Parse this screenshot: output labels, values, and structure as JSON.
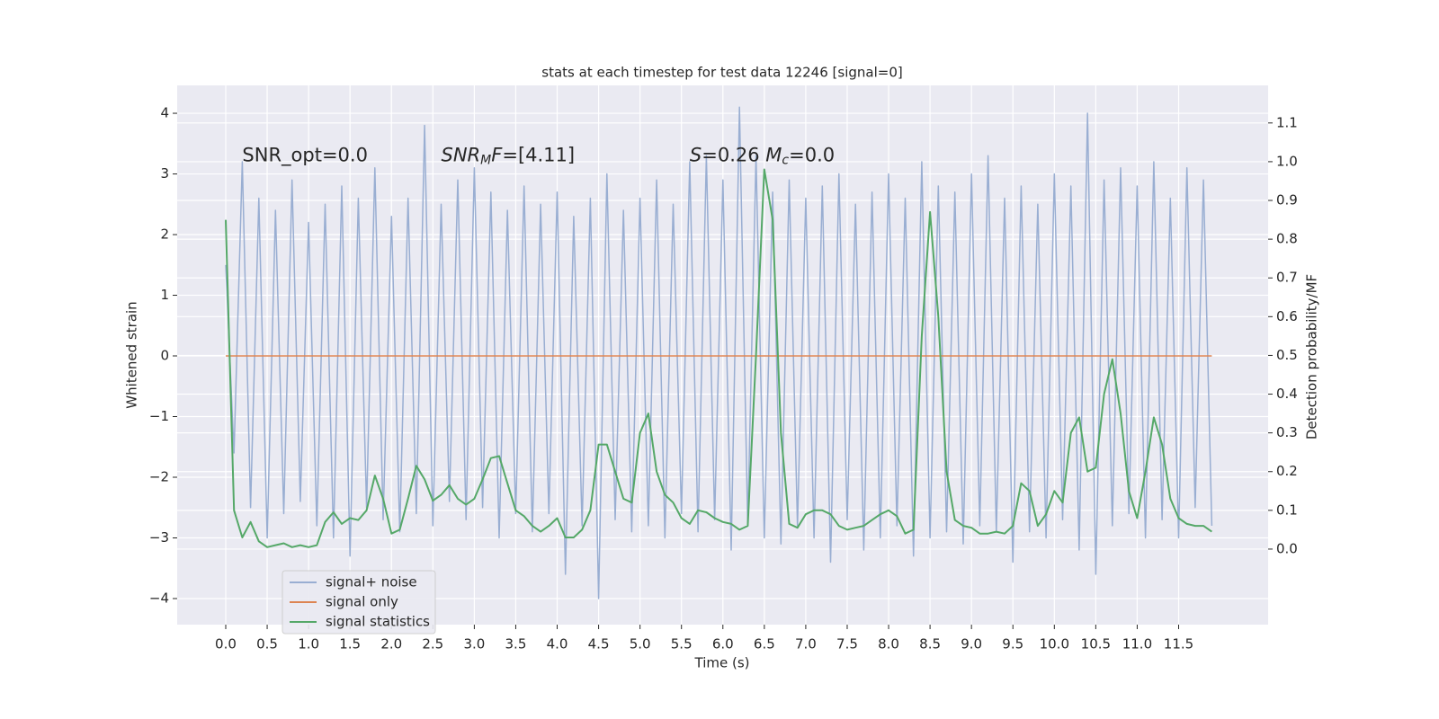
{
  "chart_data": {
    "type": "line",
    "title": "stats at each timestep for test data 12246 [signal=0]",
    "xlabel": "Time (s)",
    "ylabel": "Whitened strain",
    "y2label": "Detection probability/MF",
    "x": [
      0,
      0.1,
      0.2,
      0.3,
      0.4,
      0.5,
      0.6,
      0.7,
      0.8,
      0.9,
      1,
      1.1,
      1.2,
      1.3,
      1.4,
      1.5,
      1.6,
      1.7,
      1.8,
      1.9,
      2,
      2.1,
      2.2,
      2.3,
      2.4,
      2.5,
      2.6,
      2.7,
      2.8,
      2.9,
      3,
      3.1,
      3.2,
      3.3,
      3.4,
      3.5,
      3.6,
      3.7,
      3.8,
      3.9,
      4,
      4.1,
      4.2,
      4.3,
      4.4,
      4.5,
      4.6,
      4.7,
      4.8,
      4.9,
      5,
      5.1,
      5.2,
      5.3,
      5.4,
      5.5,
      5.6,
      5.7,
      5.8,
      5.9,
      6,
      6.1,
      6.2,
      6.3,
      6.4,
      6.5,
      6.6,
      6.7,
      6.8,
      6.9,
      7,
      7.1,
      7.2,
      7.3,
      7.4,
      7.5,
      7.6,
      7.7,
      7.8,
      7.9,
      8,
      8.1,
      8.2,
      8.3,
      8.4,
      8.5,
      8.6,
      8.7,
      8.8,
      8.9,
      9,
      9.1,
      9.2,
      9.3,
      9.4,
      9.5,
      9.6,
      9.7,
      9.8,
      9.9,
      10,
      10.1,
      10.2,
      10.3,
      10.4,
      10.5,
      10.6,
      10.7,
      10.8,
      10.9,
      11,
      11.1,
      11.2,
      11.3,
      11.4,
      11.5,
      11.6,
      11.7,
      11.8,
      11.9
    ],
    "series": [
      {
        "name": "signal+ noise",
        "color": "#99aed2",
        "axis": "y",
        "values": [
          1.5,
          -1.6,
          3.2,
          -2.5,
          2.6,
          -3.0,
          2.4,
          -2.6,
          2.9,
          -2.4,
          2.2,
          -2.8,
          2.5,
          -3.0,
          2.8,
          -3.3,
          2.6,
          -2.5,
          3.1,
          -2.7,
          2.3,
          -2.9,
          2.6,
          -2.6,
          3.8,
          -2.8,
          2.5,
          -2.4,
          2.9,
          -2.7,
          3.1,
          -2.5,
          2.7,
          -3.0,
          2.4,
          -2.6,
          2.8,
          -2.9,
          2.5,
          -2.6,
          2.7,
          -3.6,
          2.3,
          -2.8,
          2.6,
          -4.0,
          3.0,
          -2.7,
          2.4,
          -2.9,
          2.6,
          -2.8,
          2.9,
          -3.0,
          2.5,
          -2.6,
          3.2,
          -2.9,
          3.3,
          -2.7,
          2.9,
          -3.2,
          4.1,
          -2.8,
          3.3,
          -3.0,
          2.7,
          -3.1,
          2.9,
          -2.8,
          2.6,
          -3.0,
          2.8,
          -3.4,
          3.0,
          -2.7,
          2.5,
          -3.2,
          2.7,
          -3.0,
          3.0,
          -2.8,
          2.6,
          -3.3,
          3.2,
          -3.0,
          2.8,
          -2.9,
          2.7,
          -3.1,
          3.0,
          -2.8,
          3.3,
          -2.9,
          2.6,
          -3.4,
          2.8,
          -2.9,
          2.5,
          -3.0,
          3.0,
          -2.7,
          2.8,
          -3.2,
          4.0,
          -3.6,
          2.9,
          -2.8,
          3.1,
          -2.6,
          2.8,
          -3.0,
          3.2,
          -2.7,
          2.6,
          -3.0,
          3.1,
          -2.5,
          2.9,
          -2.8
        ]
      },
      {
        "name": "signal only",
        "color": "#dd8452",
        "axis": "y",
        "values": [
          0,
          0,
          0,
          0,
          0,
          0,
          0,
          0,
          0,
          0,
          0,
          0,
          0,
          0,
          0,
          0,
          0,
          0,
          0,
          0,
          0,
          0,
          0,
          0,
          0,
          0,
          0,
          0,
          0,
          0,
          0,
          0,
          0,
          0,
          0,
          0,
          0,
          0,
          0,
          0,
          0,
          0,
          0,
          0,
          0,
          0,
          0,
          0,
          0,
          0,
          0,
          0,
          0,
          0,
          0,
          0,
          0,
          0,
          0,
          0,
          0,
          0,
          0,
          0,
          0,
          0,
          0,
          0,
          0,
          0,
          0,
          0,
          0,
          0,
          0,
          0,
          0,
          0,
          0,
          0,
          0,
          0,
          0,
          0,
          0,
          0,
          0,
          0,
          0,
          0,
          0,
          0,
          0,
          0,
          0,
          0,
          0,
          0,
          0,
          0,
          0,
          0,
          0,
          0,
          0,
          0,
          0,
          0,
          0,
          0,
          0,
          0,
          0,
          0,
          0,
          0,
          0,
          0,
          0,
          0
        ]
      },
      {
        "name": "signal statistics",
        "color": "#55a868",
        "axis": "y2",
        "values": [
          0.85,
          0.1,
          0.03,
          0.07,
          0.02,
          0.005,
          0.01,
          0.015,
          0.005,
          0.01,
          0.005,
          0.01,
          0.07,
          0.095,
          0.065,
          0.08,
          0.075,
          0.1,
          0.19,
          0.13,
          0.04,
          0.05,
          0.13,
          0.215,
          0.18,
          0.125,
          0.14,
          0.165,
          0.13,
          0.115,
          0.13,
          0.18,
          0.235,
          0.24,
          0.17,
          0.1,
          0.085,
          0.06,
          0.045,
          0.06,
          0.08,
          0.03,
          0.03,
          0.05,
          0.1,
          0.27,
          0.27,
          0.2,
          0.13,
          0.12,
          0.3,
          0.35,
          0.2,
          0.14,
          0.12,
          0.08,
          0.065,
          0.1,
          0.095,
          0.08,
          0.07,
          0.065,
          0.05,
          0.06,
          0.5,
          0.98,
          0.85,
          0.3,
          0.065,
          0.055,
          0.09,
          0.1,
          0.1,
          0.09,
          0.06,
          0.05,
          0.055,
          0.06,
          0.075,
          0.09,
          0.1,
          0.085,
          0.04,
          0.05,
          0.55,
          0.87,
          0.6,
          0.2,
          0.075,
          0.06,
          0.055,
          0.04,
          0.04,
          0.045,
          0.04,
          0.06,
          0.17,
          0.15,
          0.06,
          0.09,
          0.15,
          0.12,
          0.3,
          0.34,
          0.2,
          0.21,
          0.4,
          0.49,
          0.35,
          0.15,
          0.08,
          0.2,
          0.34,
          0.27,
          0.13,
          0.08,
          0.065,
          0.06,
          0.06,
          0.045
        ]
      }
    ],
    "xlim": [
      -0.586,
      12.58
    ],
    "ylim": [
      -4.43,
      4.46
    ],
    "y2lim": [
      -0.195,
      1.197
    ],
    "xticks": [
      {
        "value": 0,
        "label": "0.0"
      },
      0.5,
      {
        "value": 1,
        "label": "1.0"
      },
      1.5,
      {
        "value": 2,
        "label": "2.0"
      },
      2.5,
      {
        "value": 3,
        "label": "3.0"
      },
      3.5,
      {
        "value": 4,
        "label": "4.0"
      },
      4.5,
      {
        "value": 5,
        "label": "5.0"
      },
      5.5,
      {
        "value": 6,
        "label": "6.0"
      },
      6.5,
      {
        "value": 7,
        "label": "7.0"
      },
      7.5,
      {
        "value": 8,
        "label": "8.0"
      },
      8.5,
      {
        "value": 9,
        "label": "9.0"
      },
      9.5,
      {
        "value": 10,
        "label": "10.0"
      },
      10.5,
      {
        "value": 11,
        "label": "11.0"
      },
      11.5
    ],
    "yticks": [
      {
        "value": -4,
        "label": "−4"
      },
      {
        "value": -3,
        "label": "−3"
      },
      {
        "value": -2,
        "label": "−2"
      },
      {
        "value": -1,
        "label": "−1"
      },
      0,
      1,
      2,
      3,
      4
    ],
    "y2ticks": [
      {
        "value": 0,
        "label": "0.0"
      },
      0.1,
      0.2,
      0.3,
      0.4,
      0.5,
      0.6,
      0.7,
      0.8,
      0.9,
      {
        "value": 1,
        "label": "1.0"
      },
      1.1
    ],
    "grid": true,
    "legend": "lower left",
    "annotations": [
      {
        "x": 0.2,
        "y": 3.3,
        "parts": [
          {
            "text": "SNR_opt=0.0"
          }
        ]
      },
      {
        "x": 2.6,
        "y": 3.3,
        "parts": [
          {
            "text": "SNR",
            "italic": true
          },
          {
            "text": "M",
            "italic": true,
            "sub": true
          },
          {
            "text": "F",
            "italic": true
          },
          {
            "text": "=[4.11]"
          }
        ]
      },
      {
        "x": 5.6,
        "y": 3.3,
        "parts": [
          {
            "text": "S",
            "italic": true
          },
          {
            "text": "=0.26  "
          },
          {
            "text": "M",
            "italic": true
          },
          {
            "text": "c",
            "italic": true,
            "sub": true
          },
          {
            "text": "=0.0"
          }
        ]
      }
    ]
  }
}
